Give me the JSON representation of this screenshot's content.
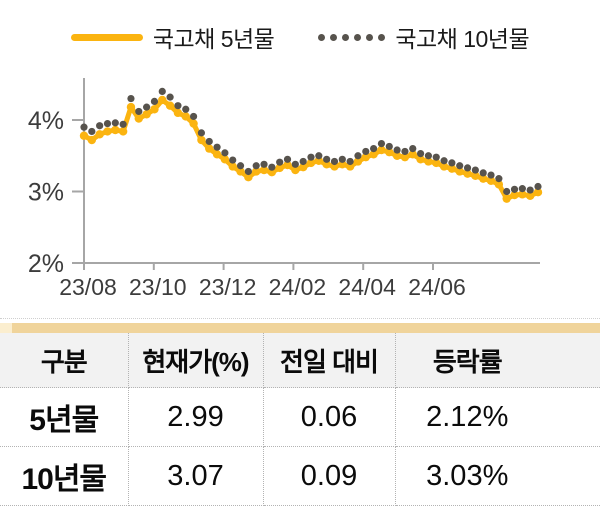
{
  "legend": {
    "series5y": "국고채 5년물",
    "series10y": "국고채 10년물"
  },
  "colors": {
    "accent_yellow": "#FBB410",
    "dot_gray": "#57534D",
    "axis_gray": "#A6A6A6",
    "label_dark": "#3C3C3C",
    "table_bar": "#F0D49B",
    "table_bar_light": "#FBEECF",
    "header_bg": "#F2F2F2",
    "border_dotted": "#B3B3B3"
  },
  "chart_data": {
    "type": "line",
    "title": "",
    "xlabel": "",
    "ylabel": "",
    "x_unit": "weekly observations",
    "x_range": [
      "2023-08",
      "2024-09"
    ],
    "x_tick_labels": [
      "23/08",
      "23/10",
      "23/12",
      "24/02",
      "24/04",
      "24/06"
    ],
    "y_tick_labels": [
      "4%",
      "3%",
      "2%"
    ],
    "y_tick_values": [
      4,
      3,
      2
    ],
    "ylim": [
      2,
      4.6
    ],
    "grid": false,
    "legend_position": "top",
    "series": [
      {
        "name": "국고채 5년물",
        "style": "solid-line-with-markers",
        "color": "#FBB410",
        "values": [
          3.78,
          3.72,
          3.8,
          3.84,
          3.86,
          3.84,
          4.18,
          4.02,
          4.08,
          4.15,
          4.28,
          4.2,
          4.1,
          4.05,
          3.95,
          3.72,
          3.6,
          3.52,
          3.45,
          3.35,
          3.28,
          3.2,
          3.28,
          3.3,
          3.27,
          3.33,
          3.37,
          3.3,
          3.34,
          3.4,
          3.43,
          3.38,
          3.35,
          3.38,
          3.35,
          3.42,
          3.48,
          3.52,
          3.58,
          3.55,
          3.5,
          3.48,
          3.52,
          3.45,
          3.42,
          3.4,
          3.35,
          3.32,
          3.28,
          3.25,
          3.22,
          3.18,
          3.15,
          3.1,
          2.9,
          2.95,
          2.96,
          2.94,
          2.99
        ]
      },
      {
        "name": "국고채 10년물",
        "style": "dotted",
        "color": "#57534D",
        "values": [
          3.9,
          3.84,
          3.92,
          3.95,
          3.96,
          3.94,
          4.3,
          4.12,
          4.18,
          4.26,
          4.4,
          4.32,
          4.2,
          4.15,
          4.05,
          3.82,
          3.7,
          3.62,
          3.54,
          3.44,
          3.36,
          3.28,
          3.36,
          3.38,
          3.34,
          3.41,
          3.45,
          3.38,
          3.42,
          3.48,
          3.5,
          3.45,
          3.42,
          3.45,
          3.42,
          3.5,
          3.56,
          3.6,
          3.67,
          3.63,
          3.58,
          3.56,
          3.6,
          3.53,
          3.5,
          3.48,
          3.43,
          3.4,
          3.36,
          3.33,
          3.3,
          3.26,
          3.23,
          3.18,
          3.0,
          3.03,
          3.04,
          3.02,
          3.07
        ]
      }
    ]
  },
  "table": {
    "headers": [
      "구분",
      "현재가(%)",
      "전일 대비",
      "등락률"
    ],
    "rows": [
      [
        "5년물",
        "2.99",
        "0.06",
        "2.12%"
      ],
      [
        "10년물",
        "3.07",
        "0.09",
        "3.03%"
      ]
    ]
  }
}
